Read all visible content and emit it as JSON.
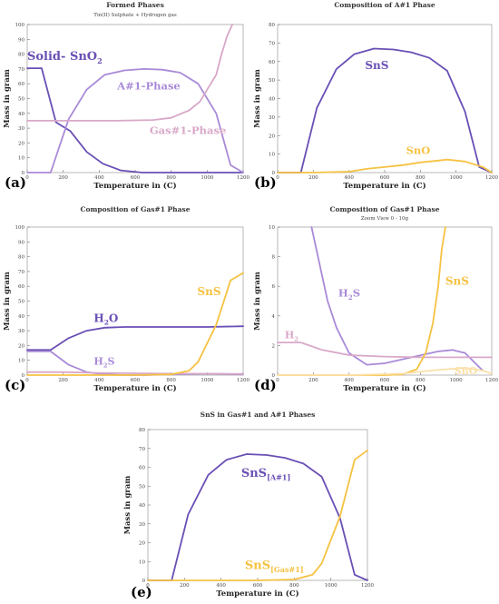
{
  "colors": {
    "dark_purple": "#6a4fb5",
    "light_purple": "#a98ad8",
    "pink": "#d8a8c8",
    "yellow": "#f5c242"
  },
  "chart_data": [
    {
      "id": "a",
      "type": "line",
      "panel_label": "(a)",
      "title": "Formed Phases",
      "subtitle": "Tin(II) Sulphate + Hydrogen gas",
      "xlabel": "Temperature in (C)",
      "ylabel": "Mass in gram",
      "xlim": [
        0,
        1200
      ],
      "ylim": [
        0,
        100
      ],
      "xticks": [
        0,
        200,
        400,
        600,
        800,
        1000,
        1200
      ],
      "yticks": [
        0,
        10,
        20,
        30,
        40,
        50,
        60,
        70,
        80,
        90,
        100
      ],
      "series": [
        {
          "color": "#6a4fb5",
          "x": [
            0,
            80,
            160,
            240,
            330,
            420,
            520,
            640,
            800,
            1000,
            1200
          ],
          "y": [
            70.5,
            70.5,
            34,
            28,
            14,
            6,
            1.5,
            0,
            0,
            0,
            0
          ]
        },
        {
          "color": "#a98ad8",
          "x": [
            0,
            130,
            230,
            330,
            430,
            540,
            650,
            750,
            850,
            950,
            1050,
            1130,
            1200
          ],
          "y": [
            0,
            0,
            36,
            56,
            66,
            69,
            70,
            69.5,
            67.5,
            60,
            40,
            5,
            0
          ]
        },
        {
          "color": "#d8a8c8",
          "x": [
            0,
            300,
            500,
            700,
            800,
            900,
            960,
            1000,
            1050,
            1080,
            1110,
            1140
          ],
          "y": [
            35,
            35,
            35,
            35.5,
            37,
            42,
            48,
            56,
            66,
            80,
            92,
            100
          ]
        }
      ],
      "annotations": [
        {
          "text": "Solid- SnO",
          "sub": "2",
          "x": 0,
          "y": 76,
          "color": "#6a4fb5",
          "size": 13
        },
        {
          "text": "A#1-Phase",
          "x": 500,
          "y": 56,
          "color": "#a98ad8",
          "size": 11.5
        },
        {
          "text": "Gas#1-Phase",
          "x": 680,
          "y": 26,
          "color": "#d8a8c8",
          "size": 11.5
        }
      ]
    },
    {
      "id": "b",
      "type": "line",
      "panel_label": "(b)",
      "title": "Composition of A#1 Phase",
      "xlabel": "Temperature in (C)",
      "ylabel": "Mass in gram",
      "xlim": [
        0,
        1200
      ],
      "ylim": [
        0,
        80
      ],
      "xticks": [
        0,
        200,
        400,
        600,
        800,
        1000,
        1200
      ],
      "yticks": [
        0,
        10,
        20,
        30,
        40,
        50,
        60,
        70,
        80
      ],
      "series": [
        {
          "color": "#6a4fb5",
          "x": [
            0,
            130,
            220,
            330,
            430,
            540,
            650,
            750,
            850,
            950,
            1050,
            1130,
            1200
          ],
          "y": [
            0,
            0,
            35,
            56,
            64,
            67,
            66.5,
            65,
            62,
            55,
            33,
            3,
            0
          ]
        },
        {
          "color": "#f5c242",
          "x": [
            0,
            200,
            400,
            500,
            600,
            700,
            800,
            900,
            950,
            1050,
            1150,
            1200
          ],
          "y": [
            0,
            0,
            0.5,
            2,
            3,
            4,
            5.5,
            6.5,
            7,
            6,
            3,
            0
          ]
        }
      ],
      "annotations": [
        {
          "text": "SnS",
          "x": 490,
          "y": 56,
          "color": "#6a4fb5",
          "size": 12
        },
        {
          "text": "SnO",
          "x": 720,
          "y": 10,
          "color": "#f5c242",
          "size": 11.5
        }
      ]
    },
    {
      "id": "c",
      "type": "line",
      "panel_label": "(c)",
      "title": "Composition of Gas#1 Phase",
      "xlabel": "Temperature in (C)",
      "ylabel": "Mass in gram",
      "xlim": [
        0,
        1200
      ],
      "ylim": [
        0,
        100
      ],
      "xticks": [
        0,
        200,
        400,
        600,
        800,
        1000,
        1200
      ],
      "yticks": [
        0,
        10,
        20,
        30,
        40,
        50,
        60,
        70,
        80,
        90,
        100
      ],
      "series": [
        {
          "color": "#6a4fb5",
          "x": [
            0,
            130,
            230,
            330,
            430,
            540,
            650,
            800,
            1000,
            1200
          ],
          "y": [
            17,
            17,
            25,
            30,
            32,
            32.5,
            32.5,
            32.5,
            32.5,
            33
          ]
        },
        {
          "color": "#a98ad8",
          "x": [
            0,
            130,
            230,
            330,
            430,
            540,
            650,
            800,
            1000,
            1200
          ],
          "y": [
            16,
            16,
            7,
            2,
            0.5,
            0,
            0,
            0.5,
            1,
            0.5
          ]
        },
        {
          "color": "#d8a8c8",
          "x": [
            0,
            200,
            400,
            600,
            800,
            1000,
            1200
          ],
          "y": [
            2,
            2,
            1.5,
            1.2,
            1,
            1,
            0.8
          ]
        },
        {
          "color": "#f5c242",
          "x": [
            0,
            600,
            800,
            900,
            950,
            1050,
            1130,
            1200
          ],
          "y": [
            0,
            0,
            0.5,
            3,
            9,
            34,
            64,
            69
          ]
        }
      ],
      "annotations": [
        {
          "text": "SnS",
          "x": 945,
          "y": 54,
          "color": "#f5c242",
          "size": 12
        },
        {
          "text": "H",
          "sub": "2",
          "tail": "O",
          "x": 370,
          "y": 36,
          "color": "#6a4fb5",
          "size": 12
        },
        {
          "text": "H",
          "sub": "2",
          "tail": "S",
          "x": 370,
          "y": 7,
          "color": "#a98ad8",
          "size": 11
        }
      ]
    },
    {
      "id": "d",
      "type": "line",
      "panel_label": "(d)",
      "title": "Composition of Gas#1 Phase",
      "subtitle": "Zoom View 0 - 10g",
      "xlabel": "Temperature in (C)",
      "ylabel": "Mass in gram",
      "xlim": [
        0,
        1200
      ],
      "ylim": [
        0,
        10
      ],
      "xticks": [
        0,
        200,
        400,
        600,
        800,
        1000,
        1200
      ],
      "yticks": [
        0,
        2,
        4,
        6,
        8,
        10
      ],
      "series": [
        {
          "color": "#a98ad8",
          "x": [
            190,
            230,
            280,
            330,
            400,
            500,
            600,
            750,
            900,
            980,
            1050,
            1150
          ],
          "y": [
            10,
            7.8,
            5,
            3.2,
            1.5,
            0.7,
            0.8,
            1.2,
            1.6,
            1.7,
            1.5,
            0.3
          ]
        },
        {
          "color": "#d8a8c8",
          "x": [
            0,
            130,
            250,
            400,
            600,
            800,
            1000,
            1200
          ],
          "y": [
            2.2,
            2.2,
            1.7,
            1.35,
            1.25,
            1.2,
            1.2,
            1.2
          ]
        },
        {
          "color": "#f5c242",
          "x": [
            0,
            600,
            700,
            780,
            830,
            870,
            900,
            920,
            940
          ],
          "y": [
            0,
            0,
            0.05,
            0.4,
            1.5,
            3.5,
            6,
            8.5,
            10
          ]
        },
        {
          "color": "#fbe0a8",
          "x": [
            0,
            400,
            700,
            850,
            950,
            1050,
            1150,
            1200
          ],
          "y": [
            0,
            0,
            0.1,
            0.3,
            0.4,
            0.5,
            0.3,
            0.1
          ]
        }
      ],
      "annotations": [
        {
          "text": "H",
          "sub": "2",
          "tail": "S",
          "x": 340,
          "y": 5.3,
          "color": "#a98ad8",
          "size": 11.5
        },
        {
          "text": "SnS",
          "x": 940,
          "y": 6.1,
          "color": "#f5c242",
          "size": 12
        },
        {
          "text": "H",
          "sub": "2",
          "x": 40,
          "y": 2.5,
          "color": "#d8a8c8",
          "size": 11
        },
        {
          "text": "SnO",
          "x": 990,
          "y": 0.05,
          "color": "#fbe0a8",
          "size": 11
        }
      ]
    },
    {
      "id": "e",
      "type": "line",
      "panel_label": "(e)",
      "title": "SnS in Gas#1 and A#1 Phases",
      "xlabel": "Temperature in (C)",
      "ylabel": "Mass in gram",
      "xlim": [
        0,
        1200
      ],
      "ylim": [
        0,
        80
      ],
      "xticks": [
        0,
        200,
        400,
        600,
        800,
        1000,
        1200
      ],
      "yticks": [
        0,
        10,
        20,
        30,
        40,
        50,
        60,
        70,
        80
      ],
      "series": [
        {
          "color": "#6a4fb5",
          "x": [
            0,
            130,
            220,
            330,
            430,
            540,
            650,
            750,
            850,
            950,
            1050,
            1130,
            1200
          ],
          "y": [
            0,
            0,
            35,
            56,
            64,
            67,
            66.5,
            65,
            62,
            55,
            33,
            3,
            0
          ]
        },
        {
          "color": "#f5c242",
          "x": [
            0,
            600,
            800,
            900,
            950,
            1050,
            1130,
            1200
          ],
          "y": [
            0,
            0,
            0.5,
            3,
            9,
            34,
            64,
            69
          ]
        }
      ],
      "annotations": [
        {
          "text": "SnS",
          "sub": "[A#1]",
          "x": 510,
          "y": 55,
          "color": "#6a4fb5",
          "size": 13
        },
        {
          "text": "SnS",
          "sub": "[Gas#1]",
          "x": 530,
          "y": 6,
          "color": "#f5c242",
          "size": 13
        }
      ]
    }
  ]
}
